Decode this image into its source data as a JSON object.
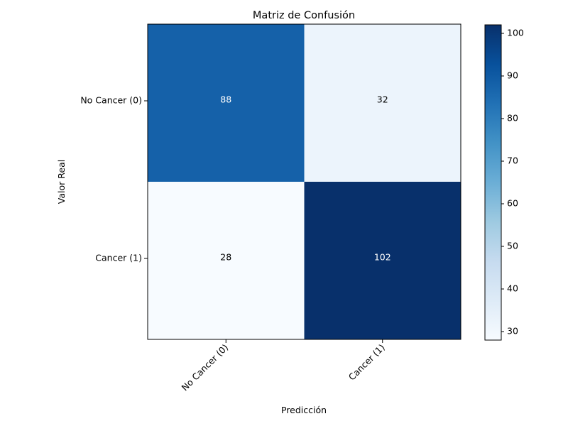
{
  "chart_data": {
    "type": "heatmap",
    "title": "Matriz de Confusión",
    "xlabel": "Predicción",
    "ylabel": "Valor Real",
    "x_categories": [
      "No Cancer (0)",
      "Cancer (1)"
    ],
    "y_categories": [
      "No Cancer (0)",
      "Cancer (1)"
    ],
    "values": [
      [
        88,
        32
      ],
      [
        28,
        102
      ]
    ],
    "colormap": "Blues",
    "color_range": [
      28,
      102
    ],
    "colorbar_ticks": [
      30,
      40,
      50,
      60,
      70,
      80,
      90,
      100
    ],
    "x_tick_rotation": "45 degrees",
    "colors": {
      "text_on_dark": "#ffffff",
      "text_on_light": "#000000"
    }
  }
}
